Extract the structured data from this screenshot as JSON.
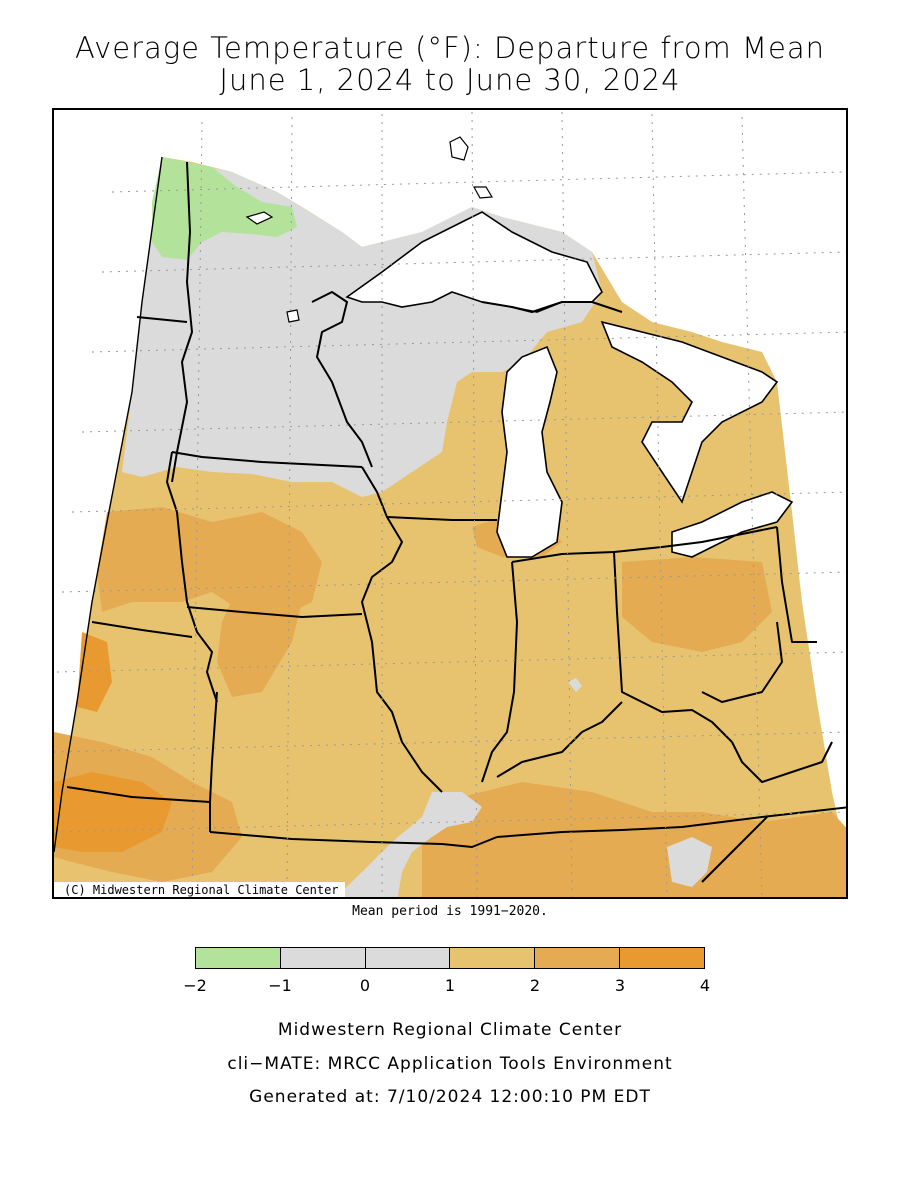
{
  "title": {
    "line1": "Average Temperature (°F): Departure from Mean",
    "line2": "June 1, 2024 to June 30, 2024"
  },
  "map": {
    "copyright": "(C) Midwestern Regional Climate Center",
    "region_fill_levels_F": {
      "northwest_minnesota": "-2 to -1",
      "minnesota_wisconsin_upper_michigan": "-1 to 1",
      "southern_illinois_west_kentucky_pocket": "-1 to 1",
      "eastern_kentucky_pocket": "-1 to 1",
      "iowa_missouri_illinois_indiana_ohio_kentucky_michigan_lower": "1 to 2",
      "southwest_iowa_missouri_patches": "2 to 3",
      "western_edge_patches": "3 to 4"
    }
  },
  "mean_period": "Mean period is 1991−2020.",
  "legend": {
    "colors": [
      "#b3e39b",
      "#dbdbdb",
      "#dbdbdb",
      "#e8c36f",
      "#e5ab52",
      "#e89a30"
    ],
    "ticks": [
      "−2",
      "−1",
      "0",
      "1",
      "2",
      "3",
      "4"
    ]
  },
  "footer": {
    "line1": "Midwestern Regional Climate Center",
    "line2": "cli−MATE: MRCC Application Tools Environment",
    "line3": "Generated at: 7/10/2024 12:00:10 PM EDT"
  }
}
